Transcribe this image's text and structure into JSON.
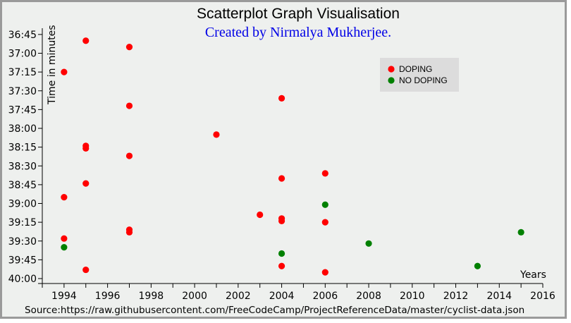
{
  "chart_data": {
    "type": "scatter",
    "title": "Scatterplot Graph Visualisation",
    "subtitle": "Created by Nirmalya Mukherjee.",
    "xlabel": "Years",
    "ylabel": "Time in minutes",
    "source": "Source:https://raw.githubusercontent.com/FreeCodeCamp/ProjectReferenceData/master/cyclist-data.json",
    "xlim": [
      1993,
      2016
    ],
    "ylim": [
      "36:40",
      "40:00"
    ],
    "x_ticks": [
      "1994",
      "1996",
      "1998",
      "2000",
      "2002",
      "2004",
      "2006",
      "2008",
      "2010",
      "2012",
      "2014",
      "2016"
    ],
    "y_ticks": [
      "36:45",
      "37:00",
      "37:15",
      "37:30",
      "37:45",
      "38:00",
      "38:15",
      "38:30",
      "38:45",
      "39:00",
      "39:15",
      "39:30",
      "39:45",
      "40:00"
    ],
    "grid": false,
    "legend_position": "top-right",
    "series": [
      {
        "name": "DOPING",
        "color": "#ff0000",
        "points": [
          {
            "x": 1995,
            "y": "36:50"
          },
          {
            "x": 1997,
            "y": "36:55"
          },
          {
            "x": 1994,
            "y": "37:15"
          },
          {
            "x": 2004,
            "y": "37:36"
          },
          {
            "x": 1997,
            "y": "37:42"
          },
          {
            "x": 2001,
            "y": "38:05"
          },
          {
            "x": 1995,
            "y": "38:14"
          },
          {
            "x": 1995,
            "y": "38:16"
          },
          {
            "x": 1997,
            "y": "38:22"
          },
          {
            "x": 2006,
            "y": "38:36"
          },
          {
            "x": 2004,
            "y": "38:40"
          },
          {
            "x": 1995,
            "y": "38:44"
          },
          {
            "x": 1994,
            "y": "38:55"
          },
          {
            "x": 2003,
            "y": "39:09"
          },
          {
            "x": 2004,
            "y": "39:12"
          },
          {
            "x": 2004,
            "y": "39:14"
          },
          {
            "x": 2006,
            "y": "39:15"
          },
          {
            "x": 1997,
            "y": "39:21"
          },
          {
            "x": 1997,
            "y": "39:23"
          },
          {
            "x": 1994,
            "y": "39:28"
          },
          {
            "x": 2004,
            "y": "39:50"
          },
          {
            "x": 1995,
            "y": "39:53"
          },
          {
            "x": 2006,
            "y": "39:55"
          }
        ]
      },
      {
        "name": "NO DOPING",
        "color": "#008000",
        "points": [
          {
            "x": 2006,
            "y": "39:01"
          },
          {
            "x": 2015,
            "y": "39:23"
          },
          {
            "x": 2008,
            "y": "39:32"
          },
          {
            "x": 1994,
            "y": "39:35"
          },
          {
            "x": 2004,
            "y": "39:40"
          },
          {
            "x": 2013,
            "y": "39:50"
          }
        ]
      }
    ]
  }
}
